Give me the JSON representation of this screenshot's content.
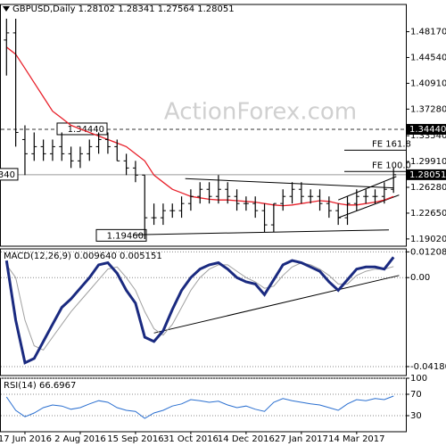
{
  "chart_data": [
    {
      "type": "ohlc",
      "title": "GBPUSD,Daily 1.28102 1.28341 1.27564 1.28051",
      "watermark": "ActionForex.com",
      "color": "#000000",
      "open": [
        1.47,
        1.48,
        1.33,
        1.31,
        1.32,
        1.31,
        1.32,
        1.31,
        1.3,
        1.31,
        1.32,
        1.33,
        1.32,
        1.3,
        1.29,
        1.28,
        1.22,
        1.22,
        1.23,
        1.23,
        1.24,
        1.25,
        1.26,
        1.25,
        1.26,
        1.25,
        1.24,
        1.24,
        1.23,
        1.21,
        1.24,
        1.25,
        1.26,
        1.25,
        1.25,
        1.24,
        1.23,
        1.22,
        1.24,
        1.25,
        1.25,
        1.25,
        1.26
      ],
      "high": [
        1.5,
        1.5,
        1.35,
        1.34,
        1.33,
        1.33,
        1.34,
        1.32,
        1.32,
        1.33,
        1.34,
        1.34,
        1.33,
        1.31,
        1.3,
        1.28,
        1.24,
        1.24,
        1.24,
        1.25,
        1.26,
        1.27,
        1.27,
        1.28,
        1.27,
        1.26,
        1.25,
        1.25,
        1.24,
        1.24,
        1.26,
        1.27,
        1.27,
        1.26,
        1.26,
        1.25,
        1.24,
        1.25,
        1.26,
        1.26,
        1.26,
        1.27,
        1.29
      ],
      "low": [
        1.42,
        1.32,
        1.28,
        1.3,
        1.3,
        1.3,
        1.3,
        1.29,
        1.29,
        1.3,
        1.31,
        1.31,
        1.3,
        1.28,
        1.27,
        1.19,
        1.21,
        1.21,
        1.22,
        1.22,
        1.23,
        1.24,
        1.24,
        1.24,
        1.24,
        1.23,
        1.23,
        1.22,
        1.2,
        1.2,
        1.23,
        1.24,
        1.24,
        1.24,
        1.23,
        1.22,
        1.21,
        1.21,
        1.23,
        1.24,
        1.24,
        1.24,
        1.255
      ],
      "close": [
        1.48,
        1.34,
        1.31,
        1.32,
        1.31,
        1.32,
        1.31,
        1.3,
        1.31,
        1.32,
        1.33,
        1.32,
        1.3,
        1.29,
        1.28,
        1.22,
        1.22,
        1.23,
        1.23,
        1.24,
        1.25,
        1.26,
        1.25,
        1.26,
        1.25,
        1.24,
        1.24,
        1.23,
        1.21,
        1.24,
        1.25,
        1.26,
        1.25,
        1.25,
        1.24,
        1.23,
        1.22,
        1.24,
        1.25,
        1.25,
        1.25,
        1.26,
        1.28051
      ],
      "ma": {
        "color": "#e8202a",
        "values": [
          1.46,
          1.45,
          1.43,
          1.41,
          1.39,
          1.37,
          1.36,
          1.35,
          1.345,
          1.34,
          1.335,
          1.33,
          1.325,
          1.32,
          1.31,
          1.3,
          1.28,
          1.27,
          1.26,
          1.255,
          1.25,
          1.248,
          1.246,
          1.245,
          1.245,
          1.244,
          1.243,
          1.242,
          1.24,
          1.238,
          1.237,
          1.238,
          1.24,
          1.242,
          1.244,
          1.243,
          1.24,
          1.238,
          1.238,
          1.24,
          1.242,
          1.245,
          1.25
        ]
      },
      "ylim": [
        1.18,
        1.52
      ],
      "yticks": [
        {
          "value": 1.4817,
          "label": "1.48170"
        },
        {
          "value": 1.4454,
          "label": "1.44540"
        },
        {
          "value": 1.4091,
          "label": "1.40910"
        },
        {
          "value": 1.3728,
          "label": "1.37280"
        },
        {
          "value": 1.3354,
          "label": "1.33540"
        },
        {
          "value": 1.2991,
          "label": "1.29910"
        },
        {
          "value": 1.2628,
          "label": "1.26280"
        },
        {
          "value": 1.2265,
          "label": "1.22650"
        },
        {
          "value": 1.1902,
          "label": "1.19020"
        }
      ],
      "grid": false,
      "levels": [
        {
          "value": 1.3444,
          "label": "1.34440",
          "style": "dashed",
          "color": "#333333"
        },
        {
          "value": 1.28051,
          "label": "1.28051",
          "style": "solid",
          "color": "#9a9a9a"
        }
      ],
      "box_labels": [
        {
          "value": 1.3444,
          "label": "1.34440"
        },
        {
          "value": 1.1946,
          "label": "1.19460"
        },
        {
          "value": 1.28051,
          "label": "340"
        }
      ],
      "fe_levels": [
        {
          "value": 1.315,
          "label": "FE 161.8"
        },
        {
          "value": 1.285,
          "label": "FE 100.0"
        }
      ],
      "trendlines": [
        {
          "x": [
            19.4,
            42
          ],
          "y": [
            1.275,
            1.262
          ]
        },
        {
          "x": [
            13.8,
            41.5
          ],
          "y": [
            1.196,
            1.203
          ]
        },
        {
          "x": [
            36,
            42.6
          ],
          "y": [
            1.22,
            1.252
          ]
        },
        {
          "x": [
            36,
            42.3
          ],
          "y": [
            1.245,
            1.278
          ]
        }
      ]
    },
    {
      "type": "line",
      "title": "MACD(12,26,9) 0.009640 0.005151",
      "series": [
        {
          "color": "#1a2a80",
          "values": [
            0.008,
            -0.02,
            -0.04,
            -0.038,
            -0.03,
            -0.022,
            -0.014,
            -0.01,
            -0.005,
            0.0,
            0.006,
            0.007,
            0.002,
            -0.006,
            -0.012,
            -0.028,
            -0.03,
            -0.025,
            -0.015,
            -0.006,
            0.0,
            0.004,
            0.006,
            0.007,
            0.004,
            0.0,
            -0.002,
            -0.003,
            -0.008,
            -0.001,
            0.006,
            0.008,
            0.007,
            0.005,
            0.003,
            -0.002,
            -0.006,
            -0.001,
            0.004,
            0.005,
            0.005,
            0.004,
            0.0096
          ]
        },
        {
          "color": "#a0a0a0",
          "values": [
            0.006,
            0.0,
            -0.02,
            -0.032,
            -0.034,
            -0.028,
            -0.022,
            -0.016,
            -0.011,
            -0.006,
            -0.001,
            0.004,
            0.005,
            0.0,
            -0.006,
            -0.016,
            -0.024,
            -0.027,
            -0.022,
            -0.014,
            -0.006,
            0.0,
            0.004,
            0.006,
            0.006,
            0.003,
            0.0,
            -0.002,
            -0.005,
            -0.004,
            0.001,
            0.005,
            0.007,
            0.006,
            0.004,
            0.001,
            -0.003,
            -0.003,
            0.001,
            0.003,
            0.004,
            0.004,
            0.0052
          ]
        }
      ],
      "ylim": [
        -0.046,
        0.0135
      ],
      "yticks": [
        0.012089,
        {
          "value": 0,
          "label": "0.00"
        },
        -0.041802
      ],
      "grid": true,
      "trendlines": [
        {
          "x": [
            16,
            42.6
          ],
          "y": [
            -0.026,
            0.001
          ]
        }
      ]
    },
    {
      "type": "line",
      "title": "RSI(14) 66.6967",
      "categories": [
        null,
        null,
        "17 Jun 2016",
        null,
        null,
        null,
        null,
        null,
        "2 Aug 2016",
        null,
        null,
        null,
        null,
        null,
        "15 Sep 2016",
        null,
        null,
        null,
        null,
        null,
        "31 Oct 2016",
        null,
        null,
        null,
        null,
        null,
        "14 Dec 2016",
        null,
        null,
        null,
        null,
        null,
        "27 Jan 2017",
        null,
        null,
        null,
        null,
        null,
        "14 Mar 2017",
        null,
        null,
        null,
        null
      ],
      "series": [
        {
          "color": "#2a6fd0",
          "values": [
            65,
            40,
            28,
            35,
            45,
            50,
            48,
            42,
            45,
            52,
            58,
            55,
            45,
            40,
            38,
            25,
            35,
            40,
            48,
            52,
            60,
            58,
            55,
            57,
            50,
            45,
            48,
            42,
            38,
            55,
            62,
            58,
            55,
            52,
            50,
            45,
            40,
            52,
            60,
            58,
            62,
            60,
            66.6967
          ]
        }
      ],
      "ylim": [
        0,
        100
      ],
      "yticks": [
        100,
        70,
        30
      ],
      "grid": true
    }
  ]
}
